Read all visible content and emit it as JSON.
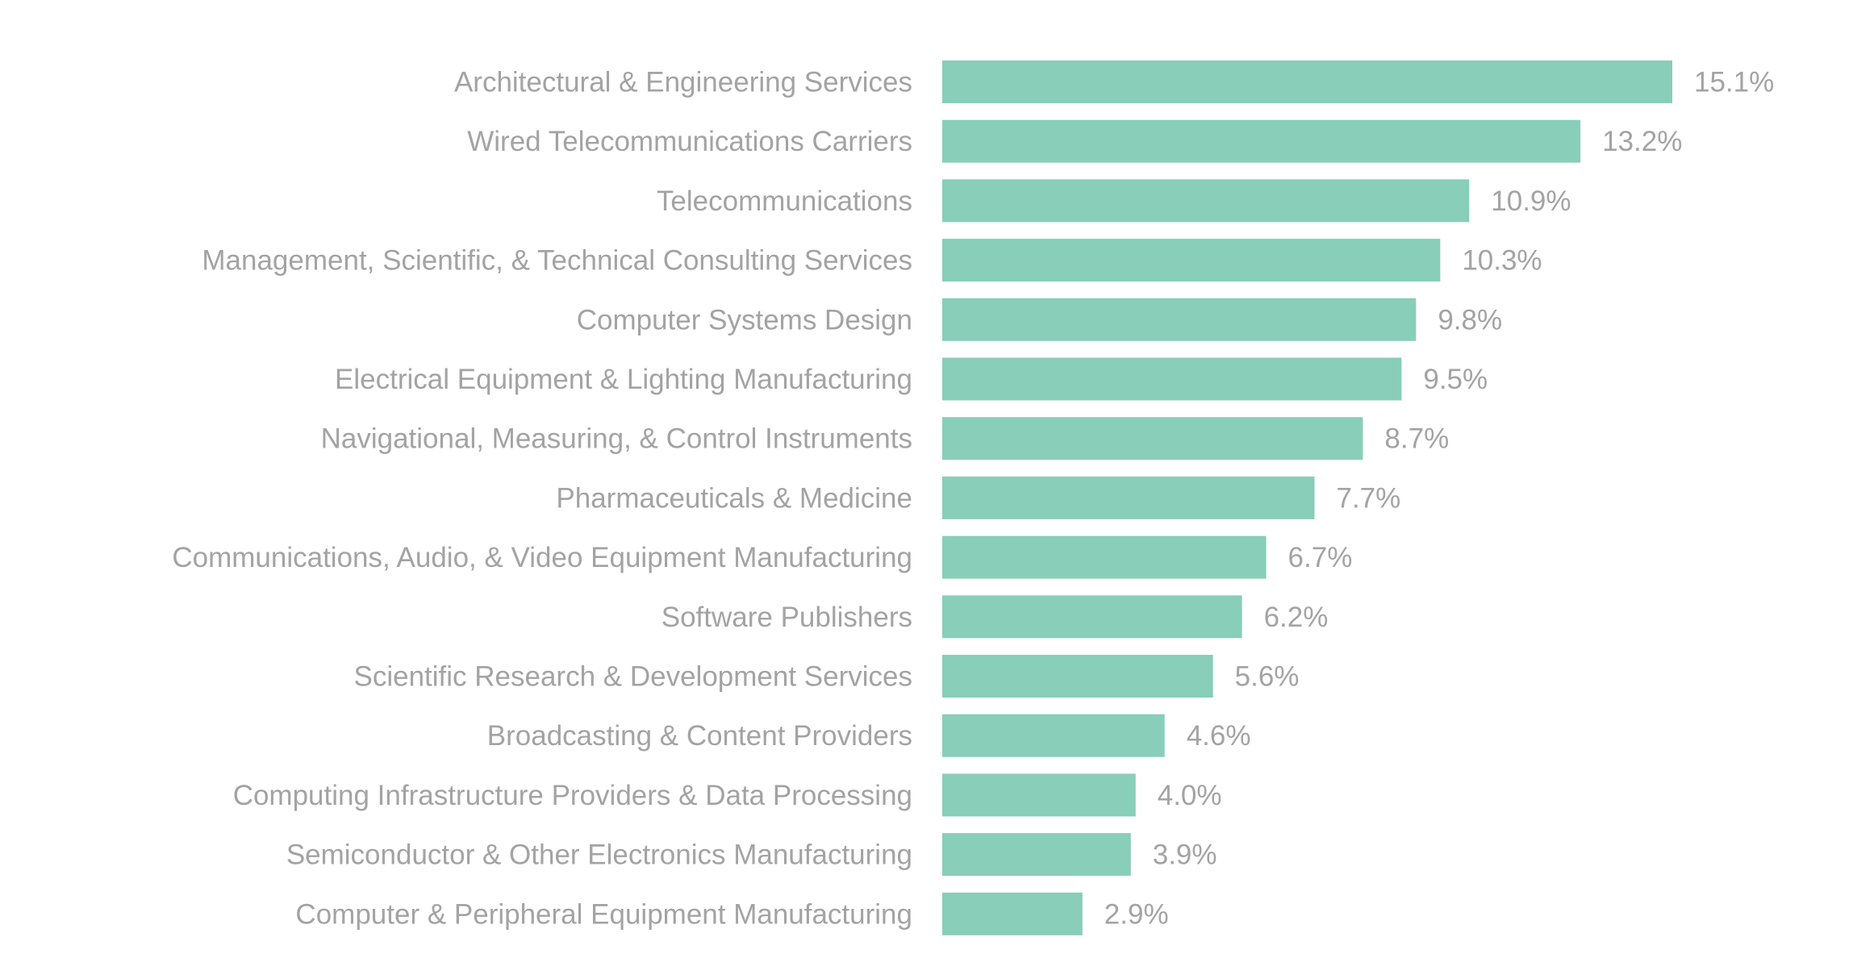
{
  "chart_data": {
    "type": "bar",
    "orientation": "horizontal",
    "title": "",
    "xlabel": "",
    "ylabel": "",
    "xlim": [
      0,
      15.1
    ],
    "grid": false,
    "bar_color": "#88CEB9",
    "label_color": "#a3a3a3",
    "value_suffix": "%",
    "categories": [
      "Architectural & Engineering Services",
      "Wired Telecommunications Carriers",
      "Telecommunications",
      "Management, Scientific, & Technical Consulting Services",
      "Computer Systems Design",
      "Electrical Equipment & Lighting Manufacturing",
      "Navigational, Measuring, & Control Instruments",
      "Pharmaceuticals & Medicine",
      "Communications, Audio, & Video Equipment Manufacturing",
      "Software Publishers",
      "Scientific Research & Development Services",
      "Broadcasting & Content Providers",
      "Computing Infrastructure Providers & Data Processing",
      "Semiconductor & Other Electronics Manufacturing",
      "Computer & Peripheral Equipment Manufacturing"
    ],
    "values": [
      15.1,
      13.2,
      10.9,
      10.3,
      9.8,
      9.5,
      8.7,
      7.7,
      6.7,
      6.2,
      5.6,
      4.6,
      4.0,
      3.9,
      2.9
    ],
    "data_labels": [
      "15.1%",
      "13.2%",
      "10.9%",
      "10.3%",
      "9.8%",
      "9.5%",
      "8.7%",
      "7.7%",
      "6.7%",
      "6.2%",
      "5.6%",
      "4.6%",
      "4.0%",
      "3.9%",
      "2.9%"
    ]
  }
}
